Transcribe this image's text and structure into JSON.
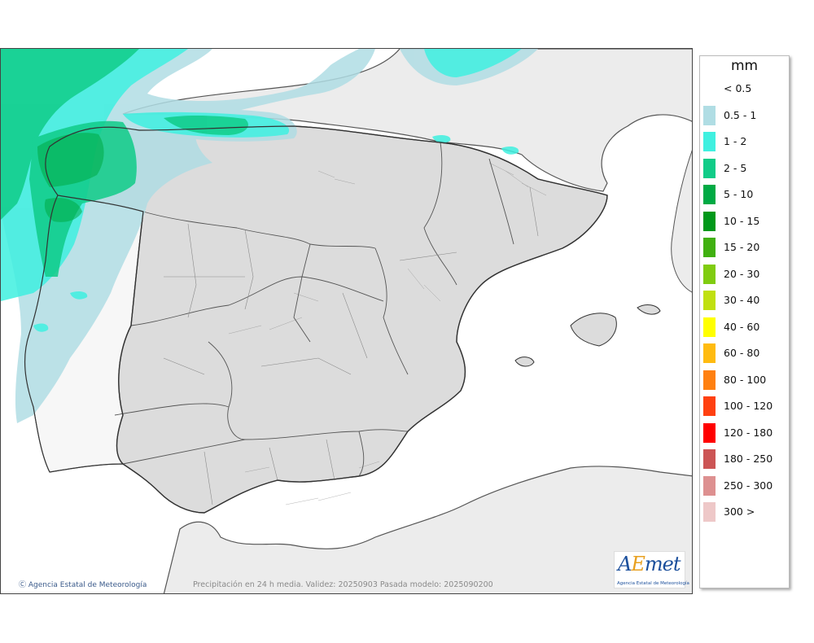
{
  "map": {
    "copyright": "Ⓒ Agencia Estatal de Meteorología",
    "footer_note": "Precipitación en 24 h media. Validez: 20250903 Pasada modelo: 2025090200",
    "logo": {
      "name_a": "A",
      "name_e": "E",
      "name_rest": "met",
      "subtitle": "Agencia Estatal de Meteorología"
    }
  },
  "legend": {
    "unit": "mm",
    "items": [
      {
        "label": "< 0.5",
        "color": "#ffffff"
      },
      {
        "label": "0.5 - 1",
        "color": "#b0dde4"
      },
      {
        "label": "1 - 2",
        "color": "#3ff0e0"
      },
      {
        "label": "2 - 5",
        "color": "#10cc88"
      },
      {
        "label": "5 - 10",
        "color": "#00aa44"
      },
      {
        "label": "10 - 15",
        "color": "#00981a"
      },
      {
        "label": "15 - 20",
        "color": "#40b010"
      },
      {
        "label": "20 - 30",
        "color": "#80cc10"
      },
      {
        "label": "30 - 40",
        "color": "#c0e010"
      },
      {
        "label": "40 - 60",
        "color": "#ffff00"
      },
      {
        "label": "60 - 80",
        "color": "#ffbb10"
      },
      {
        "label": "80 - 100",
        "color": "#ff8010"
      },
      {
        "label": "100 - 120",
        "color": "#ff4010"
      },
      {
        "label": "120 - 180",
        "color": "#ff0000"
      },
      {
        "label": "180 - 250",
        "color": "#cc5555"
      },
      {
        "label": "250 - 300",
        "color": "#dd9090"
      },
      {
        "label": "300 >",
        "color": "#eec8c8"
      }
    ]
  }
}
